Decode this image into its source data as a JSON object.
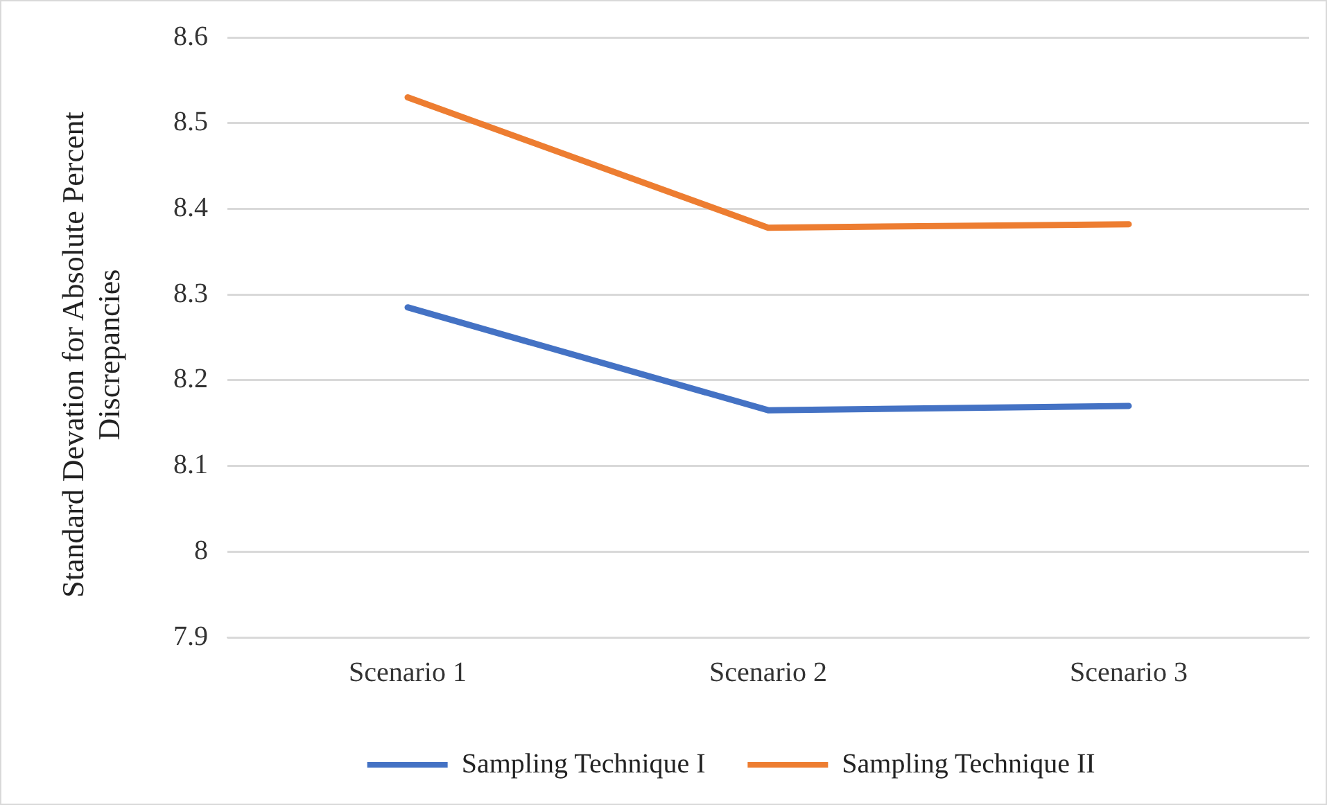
{
  "chart_data": {
    "type": "line",
    "ylabel": "Standard Devation for Absolute Percent  Discrepancies",
    "categories": [
      "Scenario 1",
      "Scenario 2",
      "Scenario 3"
    ],
    "series": [
      {
        "name": "Sampling Technique I",
        "color": "#4472c4",
        "values": [
          8.285,
          8.165,
          8.17
        ]
      },
      {
        "name": "Sampling Technique II",
        "color": "#ed7d31",
        "values": [
          8.53,
          8.378,
          8.382
        ]
      }
    ],
    "ylim": [
      7.9,
      8.6
    ],
    "yticks": [
      7.9,
      8,
      8.1,
      8.2,
      8.3,
      8.4,
      8.5,
      8.6
    ],
    "grid": "y",
    "legend": "bottom",
    "marker": "none",
    "line_style": "solid"
  }
}
